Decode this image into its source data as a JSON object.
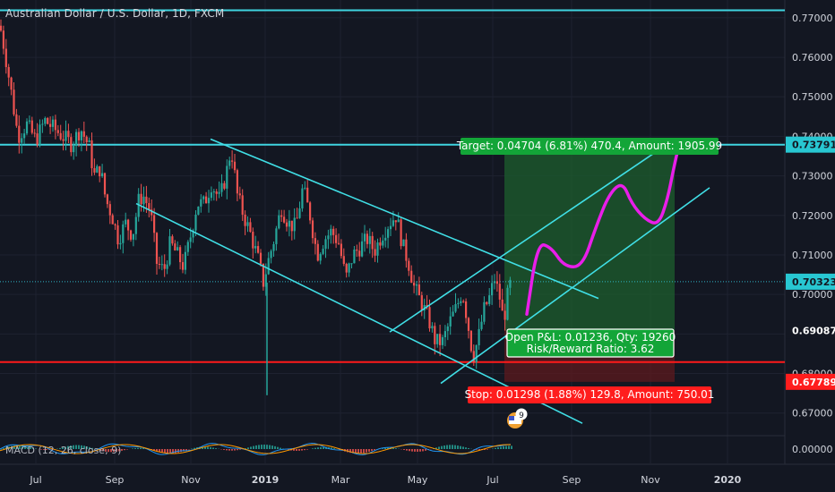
{
  "header": {
    "title": "Australian Dollar / U.S. Dollar, 1D, FXCM"
  },
  "colors": {
    "background": "#131722",
    "grid": "#1e2230",
    "bull": "#26a69a",
    "bear": "#ef5350",
    "trendline": "#40dfe6",
    "horizontal_level": "#3fd4e0",
    "stop_line": "#ff1a1a",
    "projection": "#e91ee9",
    "target_zone": "#1e5f2e",
    "stop_zone": "#5e1a1e",
    "target_label": "#13a538",
    "stop_label": "#ff1d1d",
    "axis_text": "#d1d4dc"
  },
  "chart_data": {
    "type": "candlestick",
    "symbol": "Australian Dollar / U.S. Dollar",
    "timeframe": "1D",
    "source": "FXCM",
    "y_range": [
      0.6645,
      0.7745
    ],
    "y_ticks": [
      "0.77000",
      "0.76000",
      "0.75000",
      "0.74000",
      "0.73000",
      "0.72000",
      "0.71000",
      "0.70000",
      "0.69000",
      "0.68000",
      "0.67000"
    ],
    "x_ticks": [
      "Jul",
      "Sep",
      "Nov",
      "2019",
      "Mar",
      "May",
      "Jul",
      "Sep",
      "Nov",
      "2020"
    ],
    "price_path": [
      [
        0,
        0.768
      ],
      [
        5,
        0.762
      ],
      [
        12,
        0.752
      ],
      [
        20,
        0.74
      ],
      [
        30,
        0.743
      ],
      [
        40,
        0.739
      ],
      [
        50,
        0.744
      ],
      [
        60,
        0.742
      ],
      [
        70,
        0.74
      ],
      [
        80,
        0.738
      ],
      [
        90,
        0.742
      ],
      [
        100,
        0.737
      ],
      [
        105,
        0.73
      ],
      [
        112,
        0.732
      ],
      [
        118,
        0.724
      ],
      [
        125,
        0.72
      ],
      [
        132,
        0.714
      ],
      [
        140,
        0.718
      ],
      [
        148,
        0.715
      ],
      [
        155,
        0.724
      ],
      [
        160,
        0.725
      ],
      [
        168,
        0.721
      ],
      [
        175,
        0.708
      ],
      [
        183,
        0.706
      ],
      [
        190,
        0.713
      ],
      [
        198,
        0.71
      ],
      [
        205,
        0.707
      ],
      [
        212,
        0.714
      ],
      [
        220,
        0.723
      ],
      [
        228,
        0.723
      ],
      [
        236,
        0.728
      ],
      [
        245,
        0.724
      ],
      [
        252,
        0.73
      ],
      [
        258,
        0.737
      ],
      [
        265,
        0.725
      ],
      [
        272,
        0.72
      ],
      [
        280,
        0.715
      ],
      [
        288,
        0.709
      ],
      [
        294,
        0.703
      ],
      [
        300,
        0.709
      ],
      [
        306,
        0.714
      ],
      [
        314,
        0.722
      ],
      [
        322,
        0.718
      ],
      [
        330,
        0.717
      ],
      [
        338,
        0.727
      ],
      [
        346,
        0.72
      ],
      [
        354,
        0.71
      ],
      [
        362,
        0.714
      ],
      [
        370,
        0.716
      ],
      [
        378,
        0.713
      ],
      [
        386,
        0.704
      ],
      [
        394,
        0.71
      ],
      [
        402,
        0.712
      ],
      [
        410,
        0.714
      ],
      [
        418,
        0.711
      ],
      [
        426,
        0.715
      ],
      [
        434,
        0.718
      ],
      [
        442,
        0.72
      ],
      [
        450,
        0.712
      ],
      [
        456,
        0.708
      ],
      [
        462,
        0.702
      ],
      [
        470,
        0.698
      ],
      [
        478,
        0.694
      ],
      [
        486,
        0.688
      ],
      [
        494,
        0.688
      ],
      [
        502,
        0.693
      ],
      [
        510,
        0.697
      ],
      [
        516,
        0.701
      ],
      [
        522,
        0.693
      ],
      [
        528,
        0.684
      ],
      [
        534,
        0.689
      ],
      [
        540,
        0.696
      ],
      [
        546,
        0.699
      ],
      [
        552,
        0.704
      ],
      [
        558,
        0.699
      ],
      [
        562,
        0.693
      ],
      [
        566,
        0.699
      ],
      [
        570,
        0.703
      ]
    ],
    "spike_low": {
      "x": 298,
      "low": 0.6745
    },
    "horizontal_levels": [
      0.7719,
      0.7379
    ],
    "stop_level": 0.6829,
    "current_price": 0.70323,
    "price_labels": [
      {
        "price": 0.73791,
        "text": "0.73791",
        "style": "cyan"
      },
      {
        "price": 0.70323,
        "text": "0.70323",
        "style": "cyan"
      },
      {
        "price": 0.69087,
        "text": "0.69087",
        "style": "dark"
      },
      {
        "price": 0.67789,
        "text": "0.67789",
        "style": "red"
      }
    ],
    "position": {
      "entry": 0.69087,
      "target": 0.73791,
      "stop": 0.67789,
      "x_start": 563,
      "x_end": 753,
      "target_text": "Target: 0.04704 (6.81%) 470.4, Amount: 1905.99",
      "stop_text": "Stop: 0.01298 (1.88%) 129.8, Amount: 750.01",
      "pnl_line1": "Open P&L: 0.01236, Qty: 19260",
      "pnl_line2": "Risk/Reward Ratio: 3.62"
    },
    "trendlines": [
      {
        "x1": 235,
        "y1": 0.7393,
        "x2": 668,
        "y2": 0.699
      },
      {
        "x1": 152,
        "y1": 0.723,
        "x2": 650,
        "y2": 0.6674
      },
      {
        "x1": 435,
        "y1": 0.6905,
        "x2": 748,
        "y2": 0.7385
      },
      {
        "x1": 492,
        "y1": 0.6775,
        "x2": 792,
        "y2": 0.727
      }
    ],
    "projection_path": [
      [
        588,
        0.695
      ],
      [
        600,
        0.713
      ],
      [
        615,
        0.712
      ],
      [
        630,
        0.707
      ],
      [
        650,
        0.707
      ],
      [
        665,
        0.717
      ],
      [
        680,
        0.7255
      ],
      [
        695,
        0.7285
      ],
      [
        705,
        0.723
      ],
      [
        720,
        0.719
      ],
      [
        735,
        0.7175
      ],
      [
        745,
        0.724
      ],
      [
        752,
        0.732
      ],
      [
        758,
        0.738
      ]
    ],
    "macd": {
      "label": "MACD (12, 26, close, 9)",
      "y_tick": "0.00000"
    },
    "event_badge": "9"
  }
}
